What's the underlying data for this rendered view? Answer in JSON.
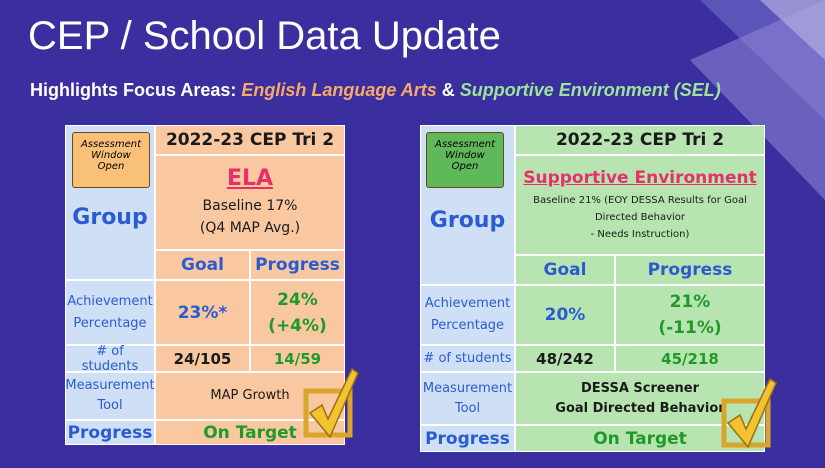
{
  "header": {
    "title": "CEP / School Data Update",
    "subtitle": {
      "lead": "Highlights Focus Areas:",
      "area1": "English Language Arts",
      "joiner": "&",
      "area2": "Supportive Environment (SEL)"
    }
  },
  "panels": [
    {
      "badge": [
        "Assessment",
        "Window",
        "Open"
      ],
      "period": "2022-23 CEP Tri 2",
      "focus": "ELA",
      "baseline": [
        "Baseline 17%",
        "(Q4 MAP Avg.)"
      ],
      "group_label": "Group",
      "goal_header": "Goal",
      "progress_header": "Progress",
      "achievement": {
        "label": [
          "Achievement",
          "Percentage"
        ],
        "goal": [
          "23%*"
        ],
        "progress": [
          "24%",
          "(+4%)"
        ]
      },
      "students": {
        "label": [
          "# of students"
        ],
        "goal": [
          "24/105"
        ],
        "progress": [
          "14/59"
        ]
      },
      "measurement": {
        "label": [
          "Measurement",
          "Tool"
        ],
        "value": [
          "MAP Growth"
        ]
      },
      "status": {
        "label": [
          "Progress"
        ],
        "value": [
          "On Target"
        ]
      }
    },
    {
      "badge": [
        "Assessment",
        "Window",
        "Open"
      ],
      "period": "2022-23 CEP Tri 2",
      "focus": "Supportive Environment",
      "baseline": [
        "Baseline 21% (EOY DESSA Results for Goal",
        "Directed Behavior",
        "- Needs Instruction)"
      ],
      "group_label": "Group",
      "goal_header": "Goal",
      "progress_header": "Progress",
      "achievement": {
        "label": [
          "Achievement",
          "Percentage"
        ],
        "goal": [
          "20%"
        ],
        "progress": [
          "21%",
          "(-11%)"
        ]
      },
      "students": {
        "label": [
          "# of students"
        ],
        "goal": [
          "48/242"
        ],
        "progress": [
          "45/218"
        ]
      },
      "measurement": {
        "label": [
          "Measurement",
          "Tool"
        ],
        "value": [
          "DESSA Screener",
          "Goal Directed Behavior"
        ]
      },
      "status": {
        "label": [
          "Progress"
        ],
        "value": [
          "On Target"
        ]
      }
    }
  ]
}
